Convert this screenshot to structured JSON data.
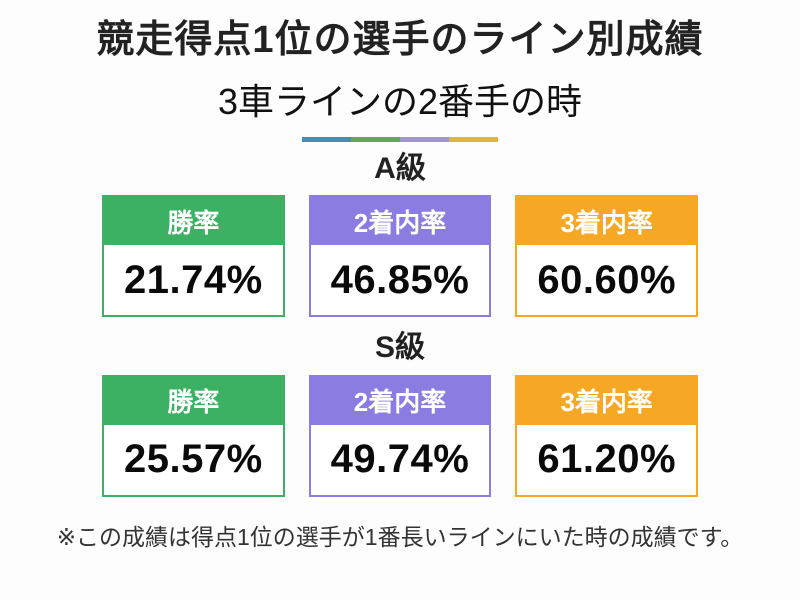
{
  "header": {
    "title": "競走得点1位の選手のライン別成績",
    "subtitle": "3車ラインの2番手の時",
    "divider_colors": [
      "#3e8fc0",
      "#58ab60",
      "#a092dc",
      "#e9b13c"
    ]
  },
  "sections": [
    {
      "label": "A級",
      "cards": [
        {
          "metric": "勝率",
          "value": "21.74%",
          "color": "#3cb063"
        },
        {
          "metric": "2着内率",
          "value": "46.85%",
          "color": "#8a7ce0"
        },
        {
          "metric": "3着内率",
          "value": "60.60%",
          "color": "#f6a723"
        }
      ]
    },
    {
      "label": "S級",
      "cards": [
        {
          "metric": "勝率",
          "value": "25.57%",
          "color": "#3cb063"
        },
        {
          "metric": "2着内率",
          "value": "49.74%",
          "color": "#8a7ce0"
        },
        {
          "metric": "3着内率",
          "value": "61.20%",
          "color": "#f6a723"
        }
      ]
    }
  ],
  "footnote": "※この成績は得点1位の選手が1番長いラインにいた時の成績です。",
  "chart_data": {
    "type": "table",
    "title": "競走得点1位の選手のライン別成績",
    "subtitle": "3車ラインの2番手の時",
    "categories": [
      "勝率",
      "2着内率",
      "3着内率"
    ],
    "series": [
      {
        "name": "A級",
        "values": [
          21.74,
          46.85,
          60.6
        ]
      },
      {
        "name": "S級",
        "values": [
          25.57,
          49.74,
          61.2
        ]
      }
    ],
    "unit": "%",
    "category_colors": [
      "#3cb063",
      "#8a7ce0",
      "#f6a723"
    ],
    "note": "※この成績は得点1位の選手が1番長いラインにいた時の成績です。"
  }
}
